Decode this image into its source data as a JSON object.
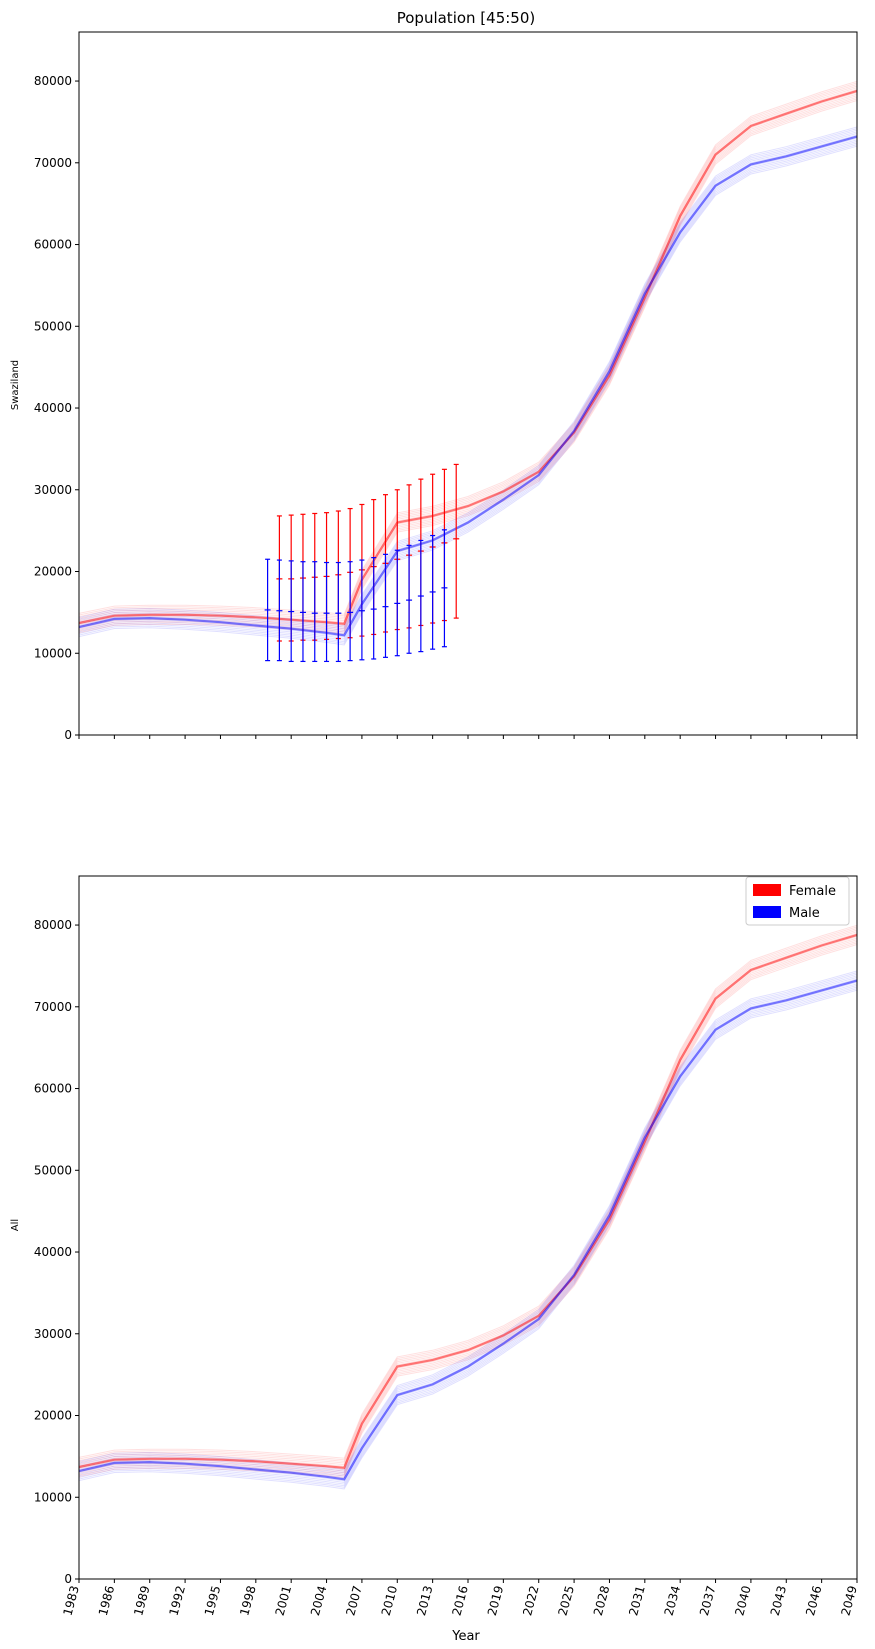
{
  "chart_data": [
    {
      "type": "line",
      "title": "Population [45:50)",
      "xlabel": "",
      "ylabel": "Swaziland",
      "xlim": [
        1983,
        2049
      ],
      "ylim": [
        0,
        86000
      ],
      "yticks": [
        0,
        10000,
        20000,
        30000,
        40000,
        50000,
        60000,
        70000,
        80000
      ],
      "x": [
        1983,
        1986,
        1989,
        1992,
        1995,
        1998,
        2001,
        2004,
        2005.5,
        2007,
        2010,
        2013,
        2016,
        2019,
        2022,
        2025,
        2028,
        2031,
        2034,
        2037,
        2040,
        2043,
        2046,
        2049
      ],
      "series": [
        {
          "name": "Female",
          "color": "#ff0000",
          "values": [
            13700,
            14600,
            14700,
            14700,
            14600,
            14400,
            14100,
            13800,
            13600,
            19000,
            26000,
            26800,
            28000,
            29800,
            32200,
            37000,
            44000,
            53500,
            63500,
            71000,
            74500,
            76000,
            77500,
            78800
          ]
        },
        {
          "name": "Male",
          "color": "#0000ff",
          "values": [
            13200,
            14200,
            14300,
            14100,
            13800,
            13400,
            13000,
            12500,
            12200,
            16000,
            22500,
            23800,
            26000,
            28800,
            31800,
            37200,
            44500,
            54000,
            61500,
            67200,
            69800,
            70800,
            72000,
            73200
          ]
        }
      ],
      "error_bars": [
        {
          "name": "Female",
          "color": "#ff0000",
          "x": [
            2000,
            2001,
            2002,
            2003,
            2004,
            2005,
            2006,
            2007,
            2008,
            2009,
            2010,
            2011,
            2012,
            2013,
            2014,
            2015
          ],
          "center": [
            19100,
            19100,
            19200,
            19300,
            19400,
            19600,
            19900,
            20200,
            20600,
            21000,
            21500,
            22000,
            22500,
            23000,
            23500,
            24000
          ],
          "low": [
            11500,
            11500,
            11600,
            11600,
            11700,
            11800,
            11900,
            12100,
            12300,
            12600,
            12900,
            13100,
            13400,
            13700,
            14000,
            14300
          ],
          "high": [
            26800,
            26900,
            27000,
            27100,
            27200,
            27400,
            27700,
            28200,
            28800,
            29400,
            30000,
            30600,
            31300,
            31900,
            32500,
            33100
          ]
        },
        {
          "name": "Male",
          "color": "#0000ff",
          "x": [
            1999,
            2000,
            2001,
            2002,
            2003,
            2004,
            2005,
            2006,
            2007,
            2008,
            2009,
            2010,
            2011,
            2012,
            2013,
            2014
          ],
          "center": [
            15300,
            15200,
            15100,
            15000,
            14900,
            14900,
            14900,
            15000,
            15200,
            15400,
            15700,
            16100,
            16500,
            17000,
            17500,
            18000
          ],
          "low": [
            9100,
            9100,
            9000,
            9000,
            9000,
            9000,
            9000,
            9100,
            9200,
            9300,
            9500,
            9700,
            10000,
            10200,
            10500,
            10800
          ],
          "high": [
            21500,
            21400,
            21300,
            21200,
            21200,
            21100,
            21100,
            21200,
            21400,
            21700,
            22100,
            22600,
            23200,
            23800,
            24400,
            25100
          ]
        }
      ]
    },
    {
      "type": "line",
      "title": "",
      "xlabel": "Year",
      "ylabel": "All",
      "xlim": [
        1983,
        2049
      ],
      "ylim": [
        0,
        86000
      ],
      "yticks": [
        0,
        10000,
        20000,
        30000,
        40000,
        50000,
        60000,
        70000,
        80000
      ],
      "xticks": [
        1983,
        1986,
        1989,
        1992,
        1995,
        1998,
        2001,
        2004,
        2007,
        2010,
        2013,
        2016,
        2019,
        2022,
        2025,
        2028,
        2031,
        2034,
        2037,
        2040,
        2043,
        2046,
        2049
      ],
      "legend": {
        "placement": "top-right",
        "entries": [
          {
            "label": "Female",
            "color": "#ff0000"
          },
          {
            "label": "Male",
            "color": "#0000ff"
          }
        ]
      },
      "x": [
        1983,
        1986,
        1989,
        1992,
        1995,
        1998,
        2001,
        2004,
        2005.5,
        2007,
        2010,
        2013,
        2016,
        2019,
        2022,
        2025,
        2028,
        2031,
        2034,
        2037,
        2040,
        2043,
        2046,
        2049
      ],
      "series": [
        {
          "name": "Female",
          "color": "#ff0000",
          "values": [
            13700,
            14600,
            14700,
            14700,
            14600,
            14400,
            14100,
            13800,
            13600,
            19000,
            26000,
            26800,
            28000,
            29800,
            32200,
            37000,
            44000,
            53500,
            63500,
            71000,
            74500,
            76000,
            77500,
            78800
          ]
        },
        {
          "name": "Male",
          "color": "#0000ff",
          "values": [
            13200,
            14200,
            14300,
            14100,
            13800,
            13400,
            13000,
            12500,
            12200,
            16000,
            22500,
            23800,
            26000,
            28800,
            31800,
            37200,
            44500,
            54000,
            61500,
            67200,
            69800,
            70800,
            72000,
            73200
          ]
        }
      ]
    }
  ]
}
